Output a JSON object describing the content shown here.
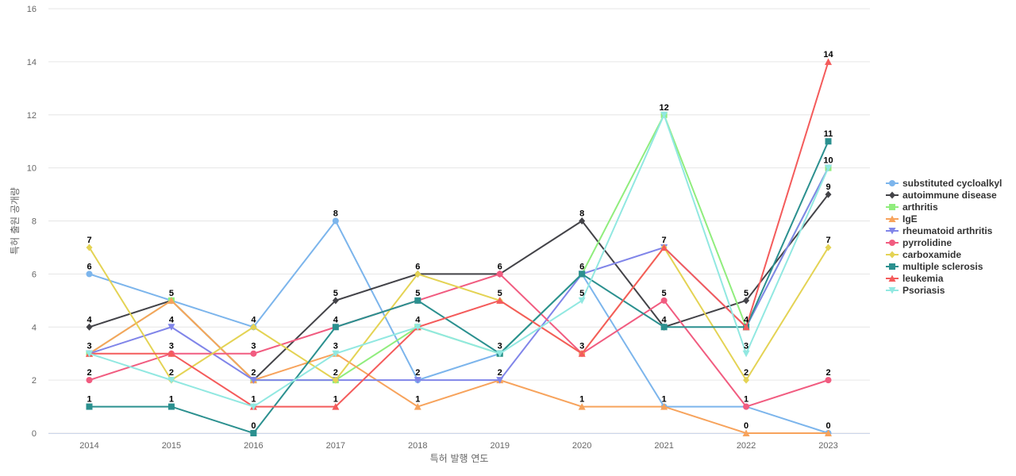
{
  "chart_data": {
    "type": "line",
    "xlabel": "특허 발행 연도",
    "ylabel": "특허 출원 공개량",
    "ylim": [
      0,
      16
    ],
    "yticks": [
      0,
      2,
      4,
      6,
      8,
      10,
      12,
      14,
      16
    ],
    "grid": true,
    "legend_position": "right",
    "x": [
      "2014",
      "2015",
      "2016",
      "2017",
      "2018",
      "2019",
      "2020",
      "2021",
      "2022",
      "2023"
    ],
    "series": [
      {
        "name": "substituted cycloalkyl",
        "color": "#7cb5ec",
        "marker": "circle",
        "values": [
          6,
          5,
          4,
          8,
          2,
          3,
          6,
          1,
          1,
          0
        ]
      },
      {
        "name": "autoimmune disease",
        "color": "#434348",
        "marker": "diamond",
        "values": [
          4,
          5,
          2,
          5,
          6,
          6,
          8,
          4,
          5,
          9
        ]
      },
      {
        "name": "arthritis",
        "color": "#90ed7d",
        "marker": "square",
        "values": [
          3,
          5,
          2,
          2,
          4,
          3,
          6,
          12,
          4,
          10
        ]
      },
      {
        "name": "IgE",
        "color": "#f7a35c",
        "marker": "triangle",
        "values": [
          3,
          5,
          2,
          3,
          1,
          2,
          1,
          1,
          0,
          0
        ]
      },
      {
        "name": "rheumatoid arthritis",
        "color": "#8085e9",
        "marker": "triangle-down",
        "values": [
          3,
          4,
          2,
          2,
          2,
          2,
          6,
          7,
          4,
          10
        ]
      },
      {
        "name": "pyrrolidine",
        "color": "#f15c80",
        "marker": "circle",
        "values": [
          2,
          3,
          3,
          4,
          5,
          6,
          3,
          5,
          1,
          2
        ]
      },
      {
        "name": "carboxamide",
        "color": "#e4d354",
        "marker": "diamond",
        "values": [
          7,
          2,
          4,
          2,
          6,
          5,
          3,
          7,
          2,
          7
        ]
      },
      {
        "name": "multiple sclerosis",
        "color": "#2b908f",
        "marker": "square",
        "values": [
          1,
          1,
          0,
          4,
          5,
          3,
          6,
          4,
          4,
          11
        ]
      },
      {
        "name": "leukemia",
        "color": "#f45b5b",
        "marker": "triangle",
        "values": [
          3,
          3,
          1,
          1,
          4,
          5,
          3,
          7,
          4,
          14
        ]
      },
      {
        "name": "Psoriasis",
        "color": "#91e8e1",
        "marker": "triangle-down",
        "values": [
          3,
          2,
          1,
          3,
          4,
          3,
          5,
          12,
          3,
          10
        ]
      }
    ],
    "point_labels": [
      {
        "x": "2014",
        "value": "7"
      },
      {
        "x": "2014",
        "value": "6"
      },
      {
        "x": "2014",
        "value": "4"
      },
      {
        "x": "2014",
        "value": "3"
      },
      {
        "x": "2014",
        "value": "2"
      },
      {
        "x": "2014",
        "value": "1"
      },
      {
        "x": "2015",
        "value": "5"
      },
      {
        "x": "2015",
        "value": "4"
      },
      {
        "x": "2015",
        "value": "3"
      },
      {
        "x": "2015",
        "value": "2"
      },
      {
        "x": "2015",
        "value": "1"
      },
      {
        "x": "2016",
        "value": "4"
      },
      {
        "x": "2016",
        "value": "3"
      },
      {
        "x": "2016",
        "value": "2"
      },
      {
        "x": "2016",
        "value": "1"
      },
      {
        "x": "2016",
        "value": "0"
      },
      {
        "x": "2017",
        "value": "8"
      },
      {
        "x": "2017",
        "value": "5"
      },
      {
        "x": "2017",
        "value": "4"
      },
      {
        "x": "2017",
        "value": "3"
      },
      {
        "x": "2017",
        "value": "2"
      },
      {
        "x": "2017",
        "value": "1"
      },
      {
        "x": "2018",
        "value": "6"
      },
      {
        "x": "2018",
        "value": "5"
      },
      {
        "x": "2018",
        "value": "4"
      },
      {
        "x": "2018",
        "value": "2"
      },
      {
        "x": "2018",
        "value": "1"
      },
      {
        "x": "2019",
        "value": "6"
      },
      {
        "x": "2019",
        "value": "5"
      },
      {
        "x": "2019",
        "value": "3"
      },
      {
        "x": "2019",
        "value": "2"
      },
      {
        "x": "2020",
        "value": "8"
      },
      {
        "x": "2020",
        "value": "6"
      },
      {
        "x": "2020",
        "value": "5"
      },
      {
        "x": "2020",
        "value": "3"
      },
      {
        "x": "2020",
        "value": "1"
      },
      {
        "x": "2021",
        "value": "12"
      },
      {
        "x": "2021",
        "value": "7"
      },
      {
        "x": "2021",
        "value": "5"
      },
      {
        "x": "2021",
        "value": "4"
      },
      {
        "x": "2021",
        "value": "1"
      },
      {
        "x": "2022",
        "value": "5"
      },
      {
        "x": "2022",
        "value": "4"
      },
      {
        "x": "2022",
        "value": "3"
      },
      {
        "x": "2022",
        "value": "2"
      },
      {
        "x": "2022",
        "value": "1"
      },
      {
        "x": "2022",
        "value": "0"
      },
      {
        "x": "2023",
        "value": "14"
      },
      {
        "x": "2023",
        "value": "11"
      },
      {
        "x": "2023",
        "value": "10"
      },
      {
        "x": "2023",
        "value": "9"
      },
      {
        "x": "2023",
        "value": "7"
      },
      {
        "x": "2023",
        "value": "2"
      },
      {
        "x": "2023",
        "value": "0"
      }
    ]
  }
}
